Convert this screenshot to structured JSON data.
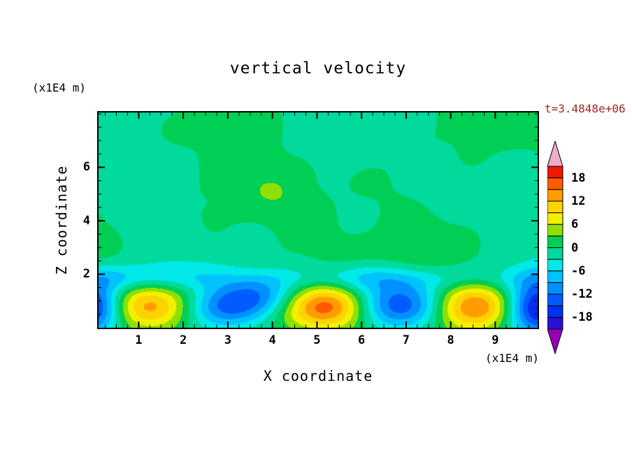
{
  "title": "vertical velocity",
  "annotations": {
    "y_unit": "(x1E4 m)",
    "x_unit": "(x1E4 m)",
    "time": "t=3.4848e+06",
    "time_color": "#a02820"
  },
  "axes": {
    "x_label": "X coordinate",
    "y_label": "Z coordinate",
    "x_ticks": [
      1,
      2,
      3,
      4,
      5,
      6,
      7,
      8,
      9
    ],
    "x_minor_step": 0.25,
    "y_ticks": [
      2,
      4,
      6
    ],
    "y_minor_step": 0.5,
    "x_range": [
      0.1,
      9.95
    ],
    "y_range": [
      0,
      8.05
    ]
  },
  "colorbar": {
    "labels": [
      18,
      12,
      6,
      0,
      -6,
      -12,
      -18
    ],
    "level_min": -21,
    "level_max": 21,
    "interval": 3,
    "band_colors_low_to_high": [
      "#2a10d2",
      "#0030f0",
      "#005cff",
      "#0090ff",
      "#00c2ff",
      "#00e8e8",
      "#00da9c",
      "#00cf55",
      "#8fe000",
      "#f2ef00",
      "#ffd300",
      "#ff9d00",
      "#ff5a00",
      "#f01800"
    ],
    "under_color": "#9400b8",
    "over_color": "#f2aac8",
    "outline_color": "#000000"
  },
  "chart_data": {
    "type": "heatmap",
    "title": "vertical velocity",
    "xlabel": "X coordinate (x1E4 m)",
    "ylabel": "Z coordinate (x1E4 m)",
    "time_annotation": "t=3.4848e+06",
    "x_range": [
      0.1,
      9.95
    ],
    "z_range": [
      0,
      8.05
    ],
    "contour_interval": 3,
    "value_range_shown": [
      -21,
      21
    ],
    "background_field_description": "weak mottled vertical velocity within about -3..+3 (two green bands) everywhere above z ~ 2",
    "convective_cells": [
      {
        "x": -0.05,
        "z": 0.75,
        "amplitude": -20,
        "wx": 0.5,
        "wz": 0.7
      },
      {
        "x": 1.25,
        "z": 0.8,
        "amplitude": 14,
        "wx": 0.75,
        "wz": 0.6
      },
      {
        "x": 2.85,
        "z": 0.7,
        "amplitude": -11,
        "wx": 0.7,
        "wz": 0.55
      },
      {
        "x": 3.75,
        "z": 1.15,
        "amplitude": -10,
        "wx": 0.75,
        "wz": 0.5
      },
      {
        "x": 5.2,
        "z": 0.8,
        "amplitude": 20,
        "wx": 0.75,
        "wz": 0.6
      },
      {
        "x": 6.85,
        "z": 0.85,
        "amplitude": -16,
        "wx": 0.85,
        "wz": 0.6
      },
      {
        "x": 8.5,
        "z": 0.8,
        "amplitude": 17,
        "wx": 0.7,
        "wz": 0.6
      },
      {
        "x": 9.95,
        "z": 0.75,
        "amplitude": -20,
        "wx": 0.5,
        "wz": 0.7
      }
    ],
    "cap_layer": {
      "z": 1.85,
      "amplitude": -4.5,
      "wz": 0.35
    },
    "noise_amplitude": 2.5
  }
}
